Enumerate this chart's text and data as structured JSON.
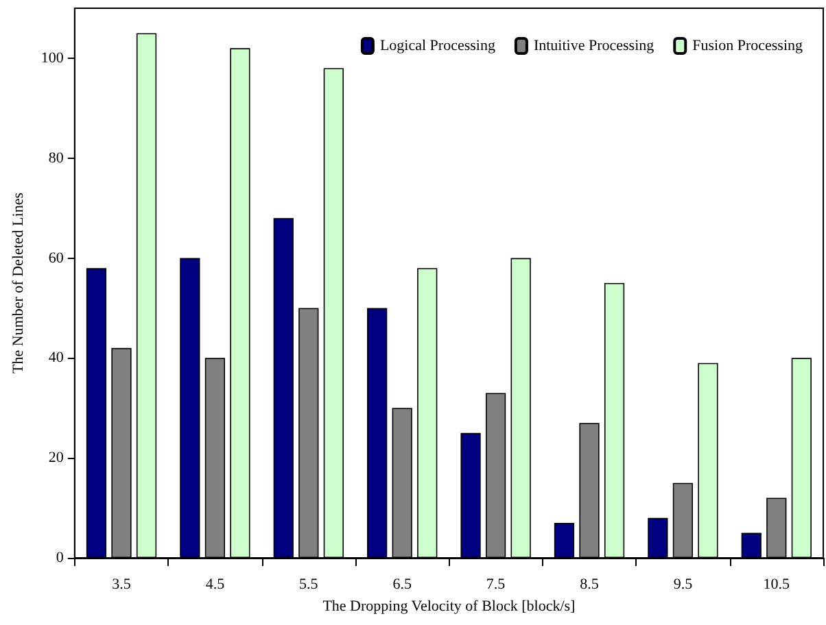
{
  "chart_data": {
    "type": "bar",
    "xlabel": "The Dropping Velocity of Block [block/s]",
    "ylabel": "The Number of Deleted Lines",
    "categories": [
      "3.5",
      "4.5",
      "5.5",
      "6.5",
      "7.5",
      "8.5",
      "9.5",
      "10.5"
    ],
    "series": [
      {
        "name": "Logical Processing",
        "color": "#000080",
        "values": [
          58,
          60,
          68,
          50,
          25,
          7,
          8,
          5
        ]
      },
      {
        "name": "Intuitive Processing",
        "color": "#808080",
        "values": [
          42,
          40,
          50,
          30,
          33,
          27,
          15,
          12
        ]
      },
      {
        "name": "Fusion Processing",
        "color": "#ccffcc",
        "values": [
          105,
          102,
          98,
          58,
          60,
          55,
          39,
          40
        ]
      }
    ],
    "ylim": [
      0,
      110
    ],
    "yticks": [
      0,
      20,
      40,
      60,
      80,
      100
    ],
    "grid": false,
    "legend": "top right"
  }
}
